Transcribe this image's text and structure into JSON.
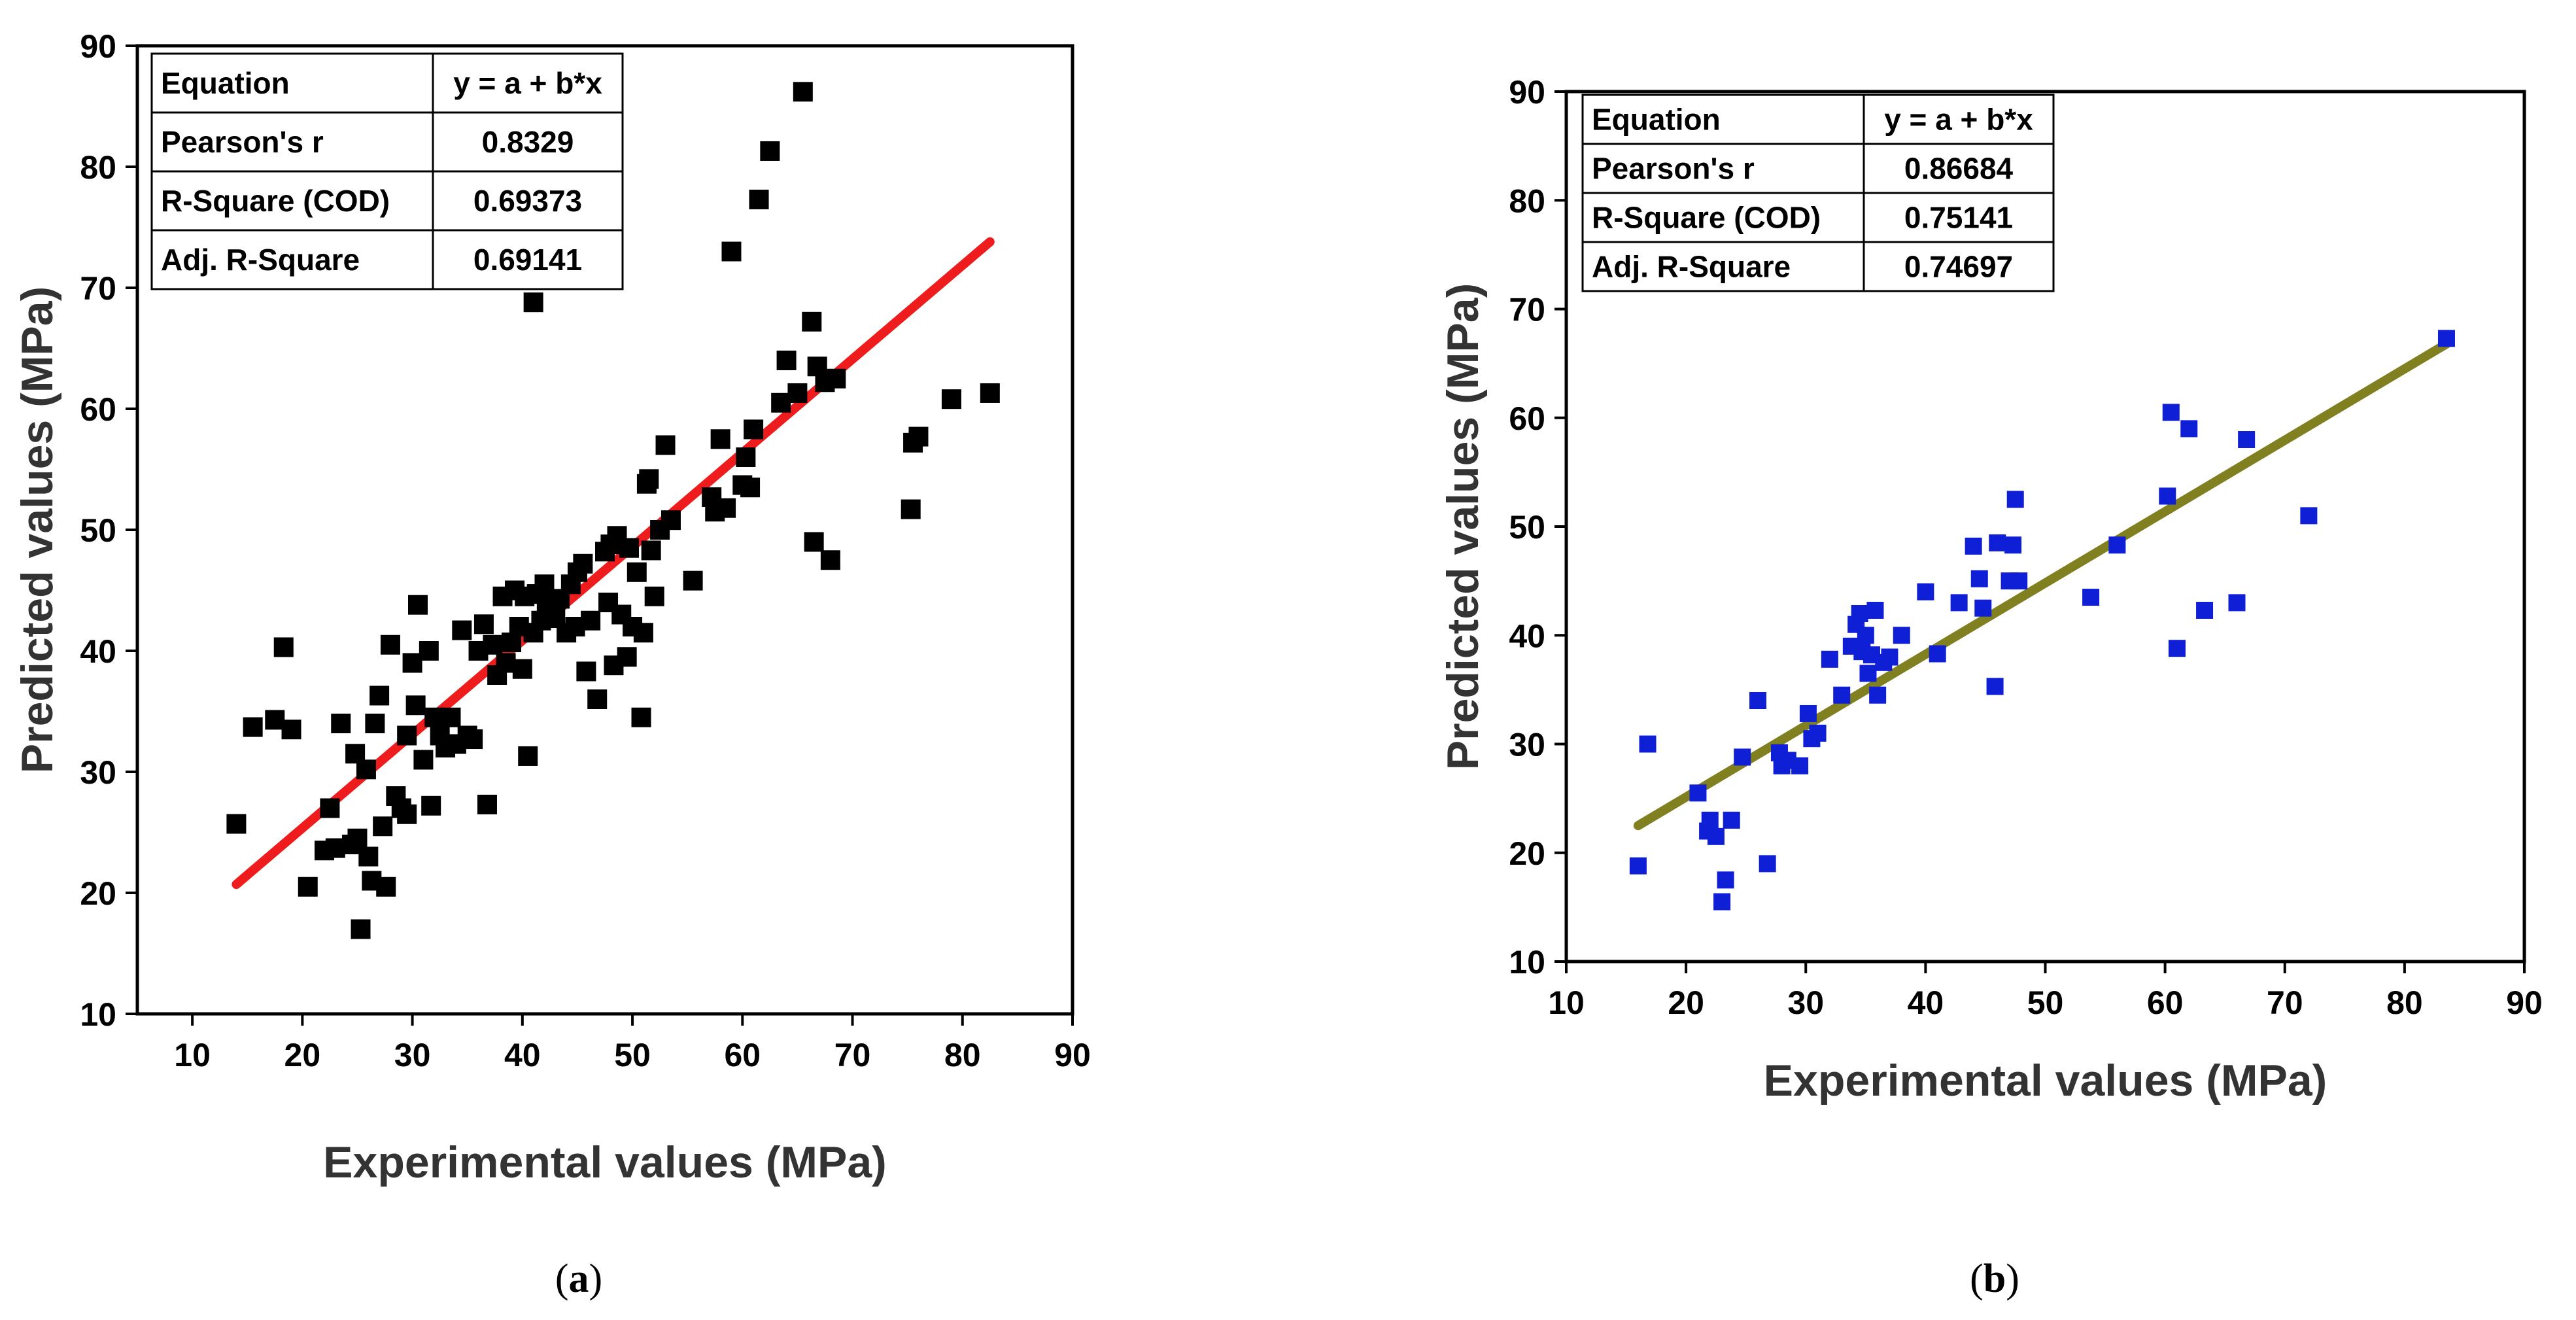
{
  "chart_data": [
    {
      "type": "scatter",
      "caption_open": "(",
      "caption_letter": "a",
      "caption_close": ")",
      "xlabel": "Experimental values (MPa)",
      "ylabel": "Predicted values (MPa)",
      "xlim": [
        5,
        90
      ],
      "ylim": [
        10,
        90
      ],
      "xticks": [
        10,
        20,
        30,
        40,
        50,
        60,
        70,
        80,
        90
      ],
      "yticks": [
        10,
        20,
        30,
        40,
        50,
        60,
        70,
        80,
        90
      ],
      "marker_color": "#000000",
      "line_color": "#ee1c1c",
      "fit_line": {
        "x": [
          14,
          82.5
        ],
        "y": [
          20.7,
          73.8
        ]
      },
      "stats": [
        [
          "Equation",
          "y = a + b*x"
        ],
        [
          "Pearson's r",
          "0.8329"
        ],
        [
          "R-Square (COD)",
          "0.69373"
        ],
        [
          "Adj. R-Square",
          "0.69141"
        ]
      ],
      "points": [
        [
          14,
          25.7
        ],
        [
          15.5,
          33.7
        ],
        [
          17.5,
          34.3
        ],
        [
          18.3,
          40.3
        ],
        [
          19,
          33.5
        ],
        [
          20.5,
          20.5
        ],
        [
          22,
          23.5
        ],
        [
          22.5,
          27
        ],
        [
          23,
          23.7
        ],
        [
          23.5,
          34
        ],
        [
          24.5,
          24
        ],
        [
          24.8,
          31.5
        ],
        [
          25,
          24.5
        ],
        [
          25.3,
          17
        ],
        [
          25.8,
          30.2
        ],
        [
          26,
          23
        ],
        [
          26.3,
          21
        ],
        [
          26.6,
          34
        ],
        [
          27,
          36.3
        ],
        [
          27.3,
          25.5
        ],
        [
          27.6,
          20.5
        ],
        [
          28,
          40.5
        ],
        [
          28.5,
          28
        ],
        [
          29,
          27
        ],
        [
          29.5,
          26.5
        ],
        [
          29.5,
          33
        ],
        [
          30,
          39
        ],
        [
          30.3,
          35.5
        ],
        [
          30.5,
          43.8
        ],
        [
          31,
          31
        ],
        [
          31.5,
          40
        ],
        [
          31.7,
          27.2
        ],
        [
          32,
          34.5
        ],
        [
          32.5,
          33
        ],
        [
          33,
          32
        ],
        [
          33.5,
          34.5
        ],
        [
          34,
          32.3
        ],
        [
          34.5,
          41.7
        ],
        [
          35,
          33
        ],
        [
          35.5,
          32.7
        ],
        [
          36,
          40
        ],
        [
          36.5,
          42.2
        ],
        [
          36.8,
          27.3
        ],
        [
          37.3,
          40.5
        ],
        [
          37.7,
          38
        ],
        [
          38.2,
          44.5
        ],
        [
          38.5,
          39
        ],
        [
          39,
          40.7
        ],
        [
          39.3,
          45
        ],
        [
          39.7,
          42
        ],
        [
          40,
          38.5
        ],
        [
          40.2,
          44.5
        ],
        [
          40.5,
          31.3
        ],
        [
          41,
          41.5
        ],
        [
          41,
          68.8
        ],
        [
          41.3,
          44.7
        ],
        [
          41.7,
          42.5
        ],
        [
          42,
          45.5
        ],
        [
          42.2,
          43.5
        ],
        [
          42.6,
          44
        ],
        [
          43,
          42.7
        ],
        [
          43.4,
          44.3
        ],
        [
          44,
          41.5
        ],
        [
          44.4,
          45.5
        ],
        [
          44.8,
          42
        ],
        [
          45,
          46.5
        ],
        [
          45.5,
          47.2
        ],
        [
          45.8,
          38.3
        ],
        [
          46.2,
          42.5
        ],
        [
          46.8,
          36
        ],
        [
          47.5,
          48.2
        ],
        [
          47.8,
          44
        ],
        [
          48,
          48.8
        ],
        [
          48.3,
          38.8
        ],
        [
          48.6,
          49.5
        ],
        [
          49,
          43
        ],
        [
          49.5,
          39.5
        ],
        [
          49.7,
          48.5
        ],
        [
          50,
          42
        ],
        [
          50.4,
          46.5
        ],
        [
          50.8,
          34.5
        ],
        [
          51,
          41.5
        ],
        [
          51.3,
          53.8
        ],
        [
          51.5,
          54.2
        ],
        [
          51.7,
          48.3
        ],
        [
          52,
          44.5
        ],
        [
          52.5,
          50
        ],
        [
          53,
          57
        ],
        [
          53.5,
          50.8
        ],
        [
          55.5,
          45.8
        ],
        [
          57.2,
          52.7
        ],
        [
          57.5,
          51.5
        ],
        [
          58,
          57.5
        ],
        [
          58.5,
          51.8
        ],
        [
          59,
          73
        ],
        [
          60,
          53.7
        ],
        [
          60.3,
          56
        ],
        [
          60.7,
          53.5
        ],
        [
          61,
          58.3
        ],
        [
          61.5,
          77.3
        ],
        [
          62.5,
          81.3
        ],
        [
          63.5,
          60.5
        ],
        [
          64,
          64
        ],
        [
          65,
          61.3
        ],
        [
          65.5,
          86.2
        ],
        [
          66.3,
          67.2
        ],
        [
          66.8,
          63.5
        ],
        [
          66.5,
          49
        ],
        [
          67.5,
          62.2
        ],
        [
          68,
          47.5
        ],
        [
          68.5,
          62.5
        ],
        [
          75.5,
          57.2
        ],
        [
          75.3,
          51.7
        ],
        [
          76,
          57.7
        ],
        [
          79,
          60.8
        ],
        [
          82.5,
          61.3
        ]
      ]
    },
    {
      "type": "scatter",
      "caption_open": "(",
      "caption_letter": "b",
      "caption_close": ")",
      "xlabel": "Experimental values (MPa)",
      "ylabel": "Predicted values (MPa)",
      "xlim": [
        10,
        90
      ],
      "ylim": [
        10,
        90
      ],
      "xticks": [
        10,
        20,
        30,
        40,
        50,
        60,
        70,
        80,
        90
      ],
      "yticks": [
        10,
        20,
        30,
        40,
        50,
        60,
        70,
        80,
        90
      ],
      "marker_color": "#0f1fd6",
      "line_color": "#808020",
      "fit_line": {
        "x": [
          16,
          83.5
        ],
        "y": [
          22.5,
          66.8
        ]
      },
      "stats": [
        [
          "Equation",
          "y = a + b*x"
        ],
        [
          "Pearson's r",
          "0.86684"
        ],
        [
          "R-Square (COD)",
          "0.75141"
        ],
        [
          "Adj. R-Square",
          "0.74697"
        ]
      ],
      "points": [
        [
          16,
          18.8
        ],
        [
          16.8,
          30
        ],
        [
          21,
          25.5
        ],
        [
          21.8,
          22
        ],
        [
          22,
          23
        ],
        [
          22.5,
          21.5
        ],
        [
          23,
          15.5
        ],
        [
          23.3,
          17.5
        ],
        [
          23.8,
          23
        ],
        [
          24.7,
          28.8
        ],
        [
          26,
          34
        ],
        [
          26.8,
          19
        ],
        [
          27.8,
          29.2
        ],
        [
          28,
          28
        ],
        [
          28.5,
          28.5
        ],
        [
          29.5,
          28
        ],
        [
          30.2,
          32.8
        ],
        [
          30.5,
          30.5
        ],
        [
          31,
          31
        ],
        [
          32,
          37.8
        ],
        [
          33,
          34.5
        ],
        [
          33.8,
          39
        ],
        [
          34.2,
          41
        ],
        [
          34.5,
          42
        ],
        [
          34.7,
          38.5
        ],
        [
          35,
          40
        ],
        [
          35.2,
          36.5
        ],
        [
          35.5,
          38.2
        ],
        [
          35.8,
          42.3
        ],
        [
          36,
          34.5
        ],
        [
          36.5,
          37.5
        ],
        [
          37,
          38
        ],
        [
          38,
          40
        ],
        [
          40,
          44
        ],
        [
          41,
          38.3
        ],
        [
          42.8,
          43
        ],
        [
          44,
          48.2
        ],
        [
          44.5,
          45.2
        ],
        [
          44.8,
          42.5
        ],
        [
          45.8,
          35.3
        ],
        [
          46,
          48.5
        ],
        [
          47,
          45
        ],
        [
          47.3,
          48.3
        ],
        [
          47.5,
          52.5
        ],
        [
          47.8,
          45
        ],
        [
          53.8,
          43.5
        ],
        [
          56,
          48.3
        ],
        [
          60.2,
          52.8
        ],
        [
          60.5,
          60.5
        ],
        [
          61,
          38.8
        ],
        [
          62,
          59
        ],
        [
          63.3,
          42.3
        ],
        [
          66,
          43
        ],
        [
          66.8,
          58
        ],
        [
          72,
          51
        ],
        [
          83.5,
          67.3
        ]
      ]
    }
  ]
}
